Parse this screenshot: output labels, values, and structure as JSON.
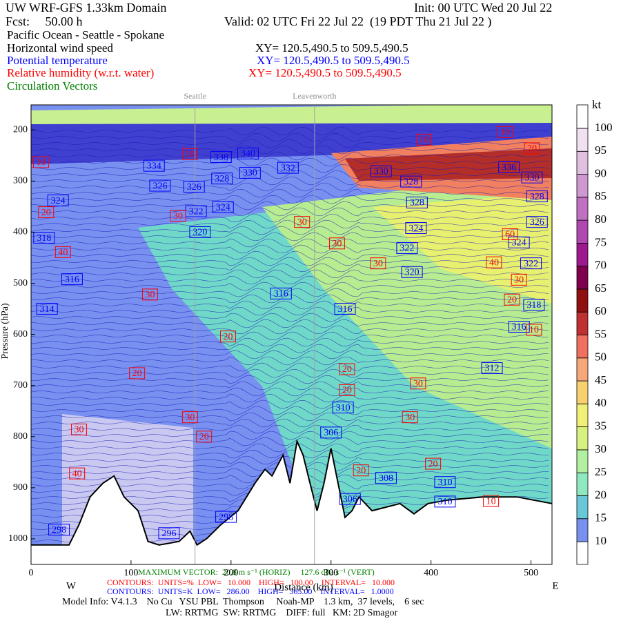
{
  "chart_data": {
    "type": "cross-section",
    "header": [
      {
        "text": "UW WRF-GFS 1.33km Domain",
        "color": "#000000"
      },
      {
        "text": "Init: 00 UTC Wed 20 Jul 22",
        "color": "#000000"
      },
      {
        "text": "Fcst:     50.00 h",
        "color": "#000000"
      },
      {
        "text": "Valid: 02 UTC Fri 22 Jul 22  (19 PDT Thu 21 Jul 22 )",
        "color": "#000000"
      },
      {
        "text": "Pacific Ocean - Seattle - Spokane",
        "color": "#000000"
      },
      {
        "text": "Horizontal wind speed",
        "color": "#000000"
      },
      {
        "text": "XY= 120.5,490.5 to 509.5,490.5",
        "color": "#000000"
      },
      {
        "text": "Potential temperature",
        "color": "#0000ff"
      },
      {
        "text": "XY= 120.5,490.5 to 509.5,490.5",
        "color": "#0000ff"
      },
      {
        "text": "Relative humidity (w.r.t. water)",
        "color": "#ff0000"
      },
      {
        "text": "XY= 120.5,490.5 to 509.5,490.5",
        "color": "#ff0000"
      },
      {
        "text": "Circulation Vectors",
        "color": "#008000"
      }
    ],
    "footer": [
      {
        "text": "MAXIMUM VECTOR:  20.8 m s⁻¹ (HORIZ)     127.6 dPa s⁻¹ (VERT)",
        "color": "#008000"
      },
      {
        "text": "CONTOURS:  UNITS=%  LOW=   10.000    HIGH=   100.00    INTERVAL=   10.000",
        "color": "#ff0000"
      },
      {
        "text": "CONTOURS:  UNITS=K  LOW=   286.00    HIGH=   365.00    INTERVAL=   1.0000",
        "color": "#0000ff"
      },
      {
        "text": "W",
        "color": "#000000"
      },
      {
        "text": "Distance (km)",
        "color": "#000000"
      },
      {
        "text": "E",
        "color": "#000000"
      },
      {
        "text": "Model Info: V4.1.3    No Cu   YSU PBL  Thompson     Noah-MP    1.3 km,  37 levels,    6 sec",
        "color": "#000000"
      },
      {
        "text": "LW: RRTMG  SW: RRTMG    DIFF: full   KM: 2D Smagor",
        "color": "#000000"
      }
    ],
    "y_label": "Pressure (hPa)",
    "xlim": [
      0,
      521
    ],
    "ylim": [
      151,
      1050
    ],
    "xticks": [
      0,
      100,
      200,
      300,
      400,
      500
    ],
    "yticks": [
      200,
      300,
      400,
      500,
      600,
      700,
      800,
      900,
      1000
    ],
    "locations": [
      {
        "name": "Seattle",
        "x": 164
      },
      {
        "name": "Leavenworth",
        "x": 283.5
      }
    ],
    "terrain": {
      "x": [
        0,
        38,
        48,
        59,
        72,
        83,
        93,
        107,
        117,
        128,
        148,
        159,
        166,
        176,
        190,
        207,
        224,
        234,
        241,
        252,
        259,
        266,
        272,
        279,
        286,
        293,
        300,
        307,
        314,
        321,
        328,
        341,
        355,
        369,
        383,
        397,
        417,
        452,
        486,
        521
      ],
      "p": [
        1012,
        1012,
        972,
        918,
        891,
        877,
        918,
        945,
        1005,
        1012,
        1005,
        985,
        1012,
        999,
        972,
        945,
        891,
        864,
        877,
        836,
        891,
        809,
        836,
        891,
        945,
        891,
        823,
        891,
        958,
        945,
        918,
        945,
        938,
        931,
        951,
        931,
        924,
        918,
        918,
        931
      ]
    },
    "theta_color": "#0000ff",
    "theta_labels": [
      {
        "x": 123,
        "p": 270,
        "value": 334
      },
      {
        "x": 190,
        "p": 253,
        "value": 338
      },
      {
        "x": 217,
        "p": 246,
        "value": 340
      },
      {
        "x": 219,
        "p": 284,
        "value": 330
      },
      {
        "x": 257,
        "p": 274,
        "value": 332
      },
      {
        "x": 129,
        "p": 309,
        "value": 326
      },
      {
        "x": 163,
        "p": 311,
        "value": 326
      },
      {
        "x": 191,
        "p": 295,
        "value": 328
      },
      {
        "x": 27,
        "p": 338,
        "value": 324
      },
      {
        "x": 192,
        "p": 351,
        "value": 324
      },
      {
        "x": 165,
        "p": 359,
        "value": 322
      },
      {
        "x": 169,
        "p": 400,
        "value": 320
      },
      {
        "x": 13,
        "p": 411,
        "value": 318
      },
      {
        "x": 41,
        "p": 492,
        "value": 316
      },
      {
        "x": 16,
        "p": 550,
        "value": 314
      },
      {
        "x": 350,
        "p": 281,
        "value": 330
      },
      {
        "x": 380,
        "p": 301,
        "value": 328
      },
      {
        "x": 386,
        "p": 342,
        "value": 328
      },
      {
        "x": 385,
        "p": 392,
        "value": 324
      },
      {
        "x": 376,
        "p": 431,
        "value": 322
      },
      {
        "x": 381,
        "p": 478,
        "value": 320
      },
      {
        "x": 503,
        "p": 542,
        "value": 318
      },
      {
        "x": 488,
        "p": 585,
        "value": 316
      },
      {
        "x": 461,
        "p": 666,
        "value": 312
      },
      {
        "x": 250,
        "p": 520,
        "value": 316
      },
      {
        "x": 314,
        "p": 550,
        "value": 316
      },
      {
        "x": 312,
        "p": 743,
        "value": 310
      },
      {
        "x": 300,
        "p": 792,
        "value": 306
      },
      {
        "x": 355,
        "p": 881,
        "value": 308
      },
      {
        "x": 414,
        "p": 889,
        "value": 310
      },
      {
        "x": 414,
        "p": 927,
        "value": 310
      },
      {
        "x": 319,
        "p": 922,
        "value": 306
      },
      {
        "x": 195,
        "p": 957,
        "value": 298
      },
      {
        "x": 138,
        "p": 989,
        "value": 296
      },
      {
        "x": 28,
        "p": 982,
        "value": 298
      },
      {
        "x": 506,
        "p": 330,
        "value": 328
      },
      {
        "x": 506,
        "p": 380,
        "value": 326
      },
      {
        "x": 488,
        "p": 420,
        "value": 324
      },
      {
        "x": 500,
        "p": 461,
        "value": 322
      },
      {
        "x": 478,
        "p": 273,
        "value": 336
      },
      {
        "x": 501,
        "p": 293,
        "value": 330
      }
    ],
    "rh_color": "#ff0000",
    "rh_labels": [
      {
        "x": 10,
        "p": 263,
        "value": 10
      },
      {
        "x": 159,
        "p": 247,
        "value": 10
      },
      {
        "x": 393,
        "p": 219,
        "value": 10
      },
      {
        "x": 474,
        "p": 204,
        "value": 10
      },
      {
        "x": 15,
        "p": 361,
        "value": 20
      },
      {
        "x": 147,
        "p": 368,
        "value": 30
      },
      {
        "x": 271,
        "p": 380,
        "value": 30
      },
      {
        "x": 306,
        "p": 422,
        "value": 30
      },
      {
        "x": 32,
        "p": 439,
        "value": 40
      },
      {
        "x": 347,
        "p": 461,
        "value": 30
      },
      {
        "x": 463,
        "p": 459,
        "value": 40
      },
      {
        "x": 488,
        "p": 493,
        "value": 30
      },
      {
        "x": 119,
        "p": 522,
        "value": 30
      },
      {
        "x": 481,
        "p": 532,
        "value": 20
      },
      {
        "x": 197,
        "p": 604,
        "value": 20
      },
      {
        "x": 106,
        "p": 676,
        "value": 20
      },
      {
        "x": 316,
        "p": 668,
        "value": 20
      },
      {
        "x": 316,
        "p": 709,
        "value": 20
      },
      {
        "x": 387,
        "p": 696,
        "value": 30
      },
      {
        "x": 503,
        "p": 591,
        "value": 10
      },
      {
        "x": 159,
        "p": 762,
        "value": 30
      },
      {
        "x": 379,
        "p": 762,
        "value": 30
      },
      {
        "x": 48,
        "p": 786,
        "value": 30
      },
      {
        "x": 173,
        "p": 800,
        "value": 20
      },
      {
        "x": 402,
        "p": 853,
        "value": 20
      },
      {
        "x": 330,
        "p": 866,
        "value": 20
      },
      {
        "x": 46,
        "p": 872,
        "value": 40
      },
      {
        "x": 460,
        "p": 926,
        "value": 10
      },
      {
        "x": 479,
        "p": 404,
        "value": 60
      },
      {
        "x": 501,
        "p": 236,
        "value": 20
      }
    ],
    "colorbar": {
      "unit": "kt",
      "levels": [
        10,
        15,
        20,
        25,
        30,
        35,
        40,
        45,
        50,
        55,
        60,
        65,
        70,
        75,
        80,
        85,
        90,
        95,
        100
      ],
      "colors": [
        "#ffffff",
        "#7890f0",
        "#68c8d8",
        "#90e8c0",
        "#b0f0a0",
        "#d8f080",
        "#f0f078",
        "#f8d070",
        "#f8a878",
        "#f07060",
        "#c03030",
        "#901010",
        "#800050",
        "#a01890",
        "#b048b0",
        "#c070c0",
        "#d098d0",
        "#e0c0e0",
        "#f0e0f0",
        "#ffffff"
      ]
    }
  }
}
